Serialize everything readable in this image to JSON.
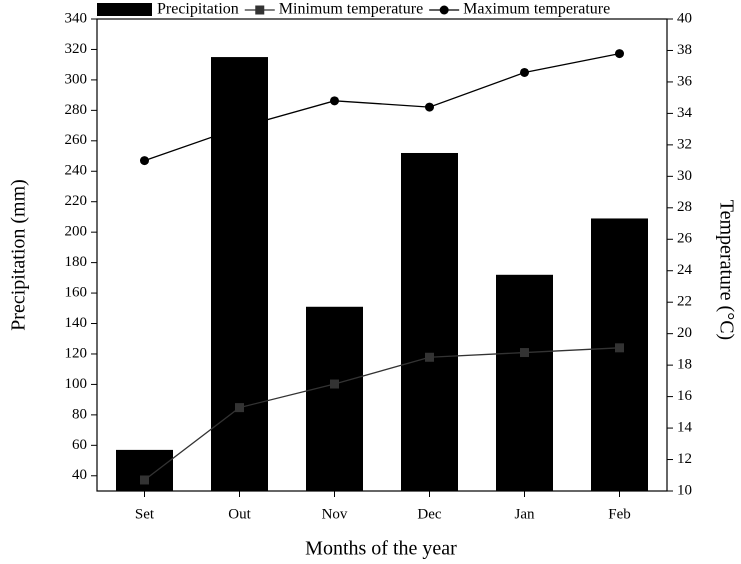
{
  "chart_data": {
    "type": "bar-line",
    "x_label": "Months of the year",
    "y_label": "Precipitation (mm)",
    "y2_label": "Temperature (°C)",
    "categories": [
      "Set",
      "Out",
      "Nov",
      "Dec",
      "Jan",
      "Feb"
    ],
    "series": [
      {
        "name": "Precipitation",
        "type": "bar",
        "color": "#000000",
        "values": [
          57,
          315,
          151,
          252,
          172,
          209
        ]
      },
      {
        "name": "Minimum temperature",
        "type": "line",
        "marker": "square",
        "axis": "y2",
        "color": "#333333",
        "values": [
          10.7,
          15.3,
          16.8,
          18.5,
          18.8,
          19.1
        ]
      },
      {
        "name": "Maximum temperature",
        "type": "line",
        "marker": "circle",
        "axis": "y2",
        "color": "#000000",
        "values": [
          31.0,
          33.1,
          34.8,
          34.4,
          36.6,
          37.8
        ]
      }
    ],
    "ylim": [
      30,
      340
    ],
    "yticks": [
      40,
      60,
      80,
      100,
      120,
      140,
      160,
      180,
      200,
      220,
      240,
      260,
      280,
      300,
      320,
      340
    ],
    "y2lim": [
      10,
      40
    ],
    "y2ticks": [
      10,
      12,
      14,
      16,
      18,
      20,
      22,
      24,
      26,
      28,
      30,
      32,
      34,
      36,
      38,
      40
    ],
    "grid": false
  }
}
